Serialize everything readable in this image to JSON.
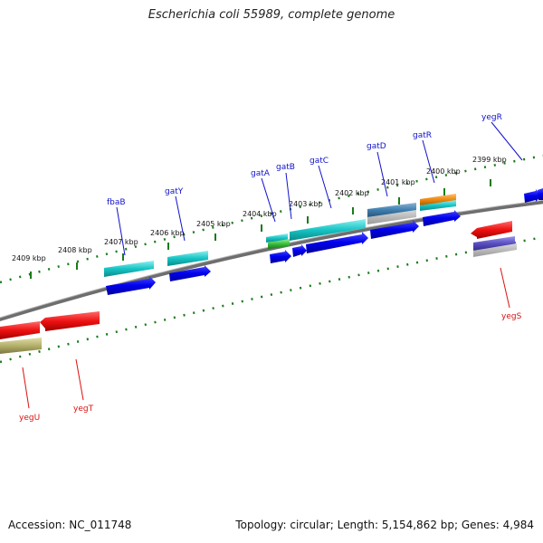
{
  "header": {
    "title": "Escherichia coli 55989, complete genome"
  },
  "footer": {
    "accession": "Accession: NC_011748",
    "topology": "Topology: circular; Length: 5,154,862 bp; Genes: 4,984"
  },
  "scale": {
    "labels": [
      "2409 kbp",
      "2408 kbp",
      "2407 kbp",
      "2406 kbp",
      "2405 kbp",
      "2404 kbp",
      "2403 kbp",
      "2402 kbp",
      "2401 kbp",
      "2400 kbp",
      "2399 kbp"
    ]
  },
  "genes": {
    "top": [
      "fbaB",
      "gatY",
      "gatA",
      "gatB",
      "gatC",
      "gatD",
      "gatR",
      "yegR"
    ],
    "bottom": [
      "yegU",
      "yegT",
      "yegS"
    ]
  },
  "colors": {
    "forward_cds": "#0000ee",
    "reverse_cds": "#ee1111",
    "teal_feature": "#17c4c4",
    "steel_feature": "#3f7fb0",
    "orange_feature": "#ee8a10",
    "green_feature": "#38c03a",
    "olive_feature": "#b4b06a",
    "purple_feature": "#5a4fc0",
    "backbone": "#808080",
    "ticks": "#1a7a1a",
    "blue_label": "#1111cc",
    "red_label": "#dd1111"
  }
}
